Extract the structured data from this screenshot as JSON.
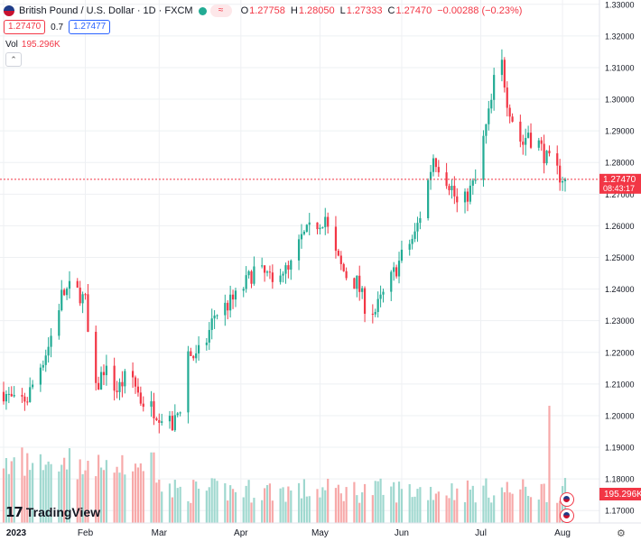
{
  "header": {
    "title": "British Pound / U.S. Dollar · 1D · FXCM",
    "status_pill": "≈",
    "ohlc": [
      {
        "k": "O",
        "v": "1.27758"
      },
      {
        "k": "H",
        "v": "1.28050"
      },
      {
        "k": "L",
        "v": "1.27333"
      },
      {
        "k": "C",
        "v": "1.27470"
      },
      {
        "k": "",
        "v": "−0.00288 (−0.23%)"
      }
    ]
  },
  "price_boxes": {
    "sell": "1.27470",
    "spread": "0.7",
    "buy": "1.27477"
  },
  "volume": {
    "label": "Vol",
    "value": "195.296K",
    "tag": "195.296K"
  },
  "last_price": {
    "value": "1.27470",
    "countdown": "08:43:17"
  },
  "branding": {
    "logo_mark": "17",
    "logo_text": "TradingView"
  },
  "colors": {
    "up": "#22ab94",
    "down": "#f23645",
    "up_vol": "#9fd8cf",
    "down_vol": "#f7a9a9",
    "grid": "#eef0f3",
    "text": "#131722"
  },
  "icons": {
    "symbol": "flag-gb-us-icon",
    "settings": "gear-icon",
    "collapse": "chevron-up-icon"
  },
  "chart_data": {
    "type": "candlestick",
    "symbol": "GBPUSD",
    "interval": "1D",
    "y_ticks": [
      "1.33000",
      "1.32000",
      "1.31000",
      "1.30000",
      "1.29000",
      "1.28000",
      "1.27000",
      "1.26000",
      "1.25000",
      "1.24000",
      "1.23000",
      "1.22000",
      "1.21000",
      "1.20000",
      "1.19000",
      "1.18000",
      "1.17000"
    ],
    "ylim": [
      1.1695,
      1.3305
    ],
    "x_labels": [
      {
        "label": "2023",
        "day": 0
      },
      {
        "label": "Feb",
        "day": 31
      },
      {
        "label": "Mar",
        "day": 59
      },
      {
        "label": "Apr",
        "day": 90
      },
      {
        "label": "May",
        "day": 120
      },
      {
        "label": "Jun",
        "day": 151
      },
      {
        "label": "Jul",
        "day": 181
      },
      {
        "label": "Aug",
        "day": 212
      }
    ],
    "start_date": "2023-01-02",
    "end_day": 213,
    "grid": true,
    "last_close": 1.2747,
    "anchors": [
      [
        0,
        1.2075
      ],
      [
        4,
        1.204
      ],
      [
        9,
        1.2055
      ],
      [
        13,
        1.214
      ],
      [
        17,
        1.222
      ],
      [
        22,
        1.238
      ],
      [
        25,
        1.24
      ],
      [
        29,
        1.2385
      ],
      [
        31,
        1.236
      ],
      [
        34,
        1.205
      ],
      [
        38,
        1.215
      ],
      [
        43,
        1.208
      ],
      [
        48,
        1.214
      ],
      [
        52,
        1.205
      ],
      [
        57,
        1.202
      ],
      [
        60,
        1.2
      ],
      [
        64,
        1.196
      ],
      [
        67,
        1.203
      ],
      [
        70,
        1.22
      ],
      [
        73,
        1.218
      ],
      [
        77,
        1.224
      ],
      [
        80,
        1.232
      ],
      [
        85,
        1.235
      ],
      [
        89,
        1.238
      ],
      [
        92,
        1.242
      ],
      [
        95,
        1.246
      ],
      [
        100,
        1.244
      ],
      [
        102,
        1.241
      ],
      [
        105,
        1.247
      ],
      [
        108,
        1.245
      ],
      [
        113,
        1.256
      ],
      [
        118,
        1.26
      ],
      [
        122,
        1.263
      ],
      [
        124,
        1.254
      ],
      [
        128,
        1.247
      ],
      [
        131,
        1.243
      ],
      [
        134,
        1.242
      ],
      [
        137,
        1.235
      ],
      [
        141,
        1.233
      ],
      [
        144,
        1.238
      ],
      [
        148,
        1.245
      ],
      [
        152,
        1.252
      ],
      [
        156,
        1.257
      ],
      [
        160,
        1.27
      ],
      [
        163,
        1.282
      ],
      [
        166,
        1.278
      ],
      [
        170,
        1.272
      ],
      [
        173,
        1.264
      ],
      [
        176,
        1.27
      ],
      [
        179,
        1.274
      ],
      [
        182,
        1.287
      ],
      [
        185,
        1.299
      ],
      [
        187,
        1.312
      ],
      [
        189,
        1.311
      ],
      [
        191,
        1.3
      ],
      [
        193,
        1.294
      ],
      [
        195,
        1.288
      ],
      [
        197,
        1.286
      ],
      [
        199,
        1.29
      ],
      [
        201,
        1.285
      ],
      [
        203,
        1.286
      ],
      [
        206,
        1.281
      ],
      [
        209,
        1.278
      ],
      [
        211,
        1.276
      ],
      [
        213,
        1.2747
      ]
    ],
    "volume_spike_day": 207
  }
}
